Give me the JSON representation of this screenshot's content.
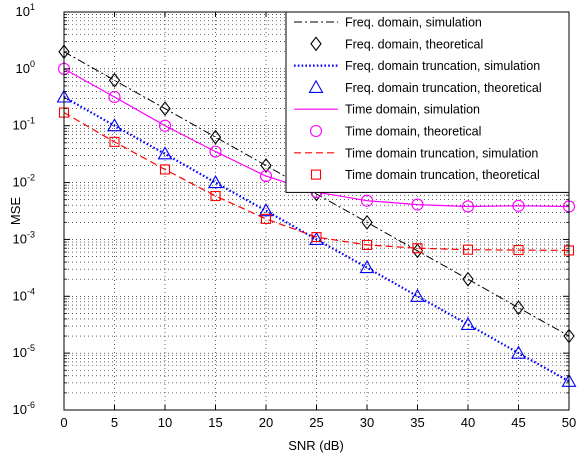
{
  "chart_data": {
    "type": "line",
    "xlabel": "SNR (dB)",
    "ylabel": "MSE",
    "x_scale": "linear",
    "y_scale": "log",
    "xlim": [
      0,
      50
    ],
    "ylim": [
      1e-06,
      10
    ],
    "x_ticks": [
      0,
      5,
      10,
      15,
      20,
      25,
      30,
      35,
      40,
      45,
      50
    ],
    "y_ticks": [
      {
        "value": 1e-06,
        "base": "10",
        "exp": "-6"
      },
      {
        "value": 1e-05,
        "base": "10",
        "exp": "-5"
      },
      {
        "value": 0.0001,
        "base": "10",
        "exp": "-4"
      },
      {
        "value": 0.001,
        "base": "10",
        "exp": "-3"
      },
      {
        "value": 0.01,
        "base": "10",
        "exp": "-2"
      },
      {
        "value": 0.1,
        "base": "10",
        "exp": "-1"
      },
      {
        "value": 1,
        "base": "10",
        "exp": "0"
      },
      {
        "value": 10,
        "base": "10",
        "exp": "1"
      }
    ],
    "grid": true,
    "legend_position": "top-right",
    "series": [
      {
        "name": "Freq. domain, simulation",
        "color": "#000000",
        "line": "dashdot",
        "marker": "none",
        "x": [
          0,
          5,
          10,
          15,
          20,
          25,
          30,
          35,
          40,
          45,
          50
        ],
        "y": [
          2.0,
          0.63,
          0.2,
          0.063,
          0.02,
          0.0063,
          0.002,
          0.00063,
          0.0002,
          6.3e-05,
          2e-05
        ]
      },
      {
        "name": "Freq. domain, theoretical",
        "color": "#000000",
        "line": "none",
        "marker": "diamond",
        "x": [
          0,
          5,
          10,
          15,
          20,
          25,
          30,
          35,
          40,
          45,
          50
        ],
        "y": [
          2.0,
          0.63,
          0.2,
          0.063,
          0.02,
          0.0063,
          0.002,
          0.00063,
          0.0002,
          6.3e-05,
          2e-05
        ]
      },
      {
        "name": "Freq. domain truncation, simulation",
        "color": "#0000ff",
        "line": "dotted",
        "marker": "none",
        "x": [
          0,
          5,
          10,
          15,
          20,
          25,
          30,
          35,
          40,
          45,
          50
        ],
        "y": [
          0.32,
          0.1,
          0.032,
          0.01,
          0.0032,
          0.001,
          0.00032,
          0.0001,
          3.2e-05,
          1e-05,
          3.2e-06
        ]
      },
      {
        "name": "Freq. domain truncation, theoretical",
        "color": "#0000ff",
        "line": "none",
        "marker": "triangle",
        "x": [
          0,
          5,
          10,
          15,
          20,
          25,
          30,
          35,
          40,
          45,
          50
        ],
        "y": [
          0.32,
          0.1,
          0.032,
          0.01,
          0.0032,
          0.001,
          0.00032,
          0.0001,
          3.2e-05,
          1e-05,
          3.2e-06
        ]
      },
      {
        "name": "Time domain, simulation",
        "color": "#ff00ff",
        "line": "solid",
        "marker": "none",
        "x": [
          0,
          5,
          10,
          15,
          20,
          25,
          30,
          35,
          40,
          45,
          50
        ],
        "y": [
          1.0,
          0.32,
          0.1,
          0.035,
          0.013,
          0.0068,
          0.0048,
          0.0041,
          0.0038,
          0.0039,
          0.0038
        ]
      },
      {
        "name": "Time domain, theoretical",
        "color": "#ff00ff",
        "line": "none",
        "marker": "circle",
        "x": [
          0,
          5,
          10,
          15,
          20,
          25,
          30,
          35,
          40,
          45,
          50
        ],
        "y": [
          1.0,
          0.32,
          0.1,
          0.035,
          0.013,
          0.0068,
          0.0048,
          0.0041,
          0.0038,
          0.0039,
          0.0038
        ]
      },
      {
        "name": "Time domain truncation, simulation",
        "color": "#ff0000",
        "line": "dashed",
        "marker": "none",
        "x": [
          0,
          5,
          10,
          15,
          20,
          25,
          30,
          35,
          40,
          45,
          50
        ],
        "y": [
          0.17,
          0.052,
          0.017,
          0.0058,
          0.0023,
          0.0011,
          0.0008,
          0.0007,
          0.00066,
          0.00065,
          0.00064
        ]
      },
      {
        "name": "Time domain truncation, theoretical",
        "color": "#ff0000",
        "line": "none",
        "marker": "square",
        "x": [
          0,
          5,
          10,
          15,
          20,
          25,
          30,
          35,
          40,
          45,
          50
        ],
        "y": [
          0.17,
          0.052,
          0.017,
          0.0058,
          0.0023,
          0.0011,
          0.0008,
          0.0007,
          0.00066,
          0.00065,
          0.00064
        ]
      }
    ]
  }
}
